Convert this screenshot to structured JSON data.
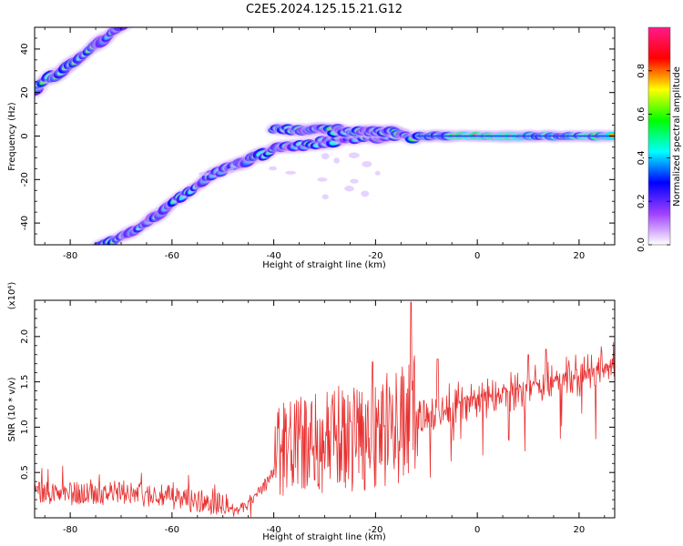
{
  "title": "C2E5.2024.125.15.21.G12",
  "chart_data": [
    {
      "type": "heatmap",
      "xlabel": "Height of straight line (km)",
      "ylabel": "Frequency (Hz)",
      "xlim": [
        -87,
        27
      ],
      "ylim": [
        -50,
        50
      ],
      "xticks": [
        -80,
        -60,
        -40,
        -20,
        0,
        20
      ],
      "yticks": [
        -40,
        -20,
        0,
        20,
        40
      ],
      "colorbar": {
        "label": "Normalized spectral amplitude",
        "range": [
          0,
          1
        ],
        "ticks": [
          "0.0",
          "0.2",
          "0.4",
          "0.6",
          "0.8"
        ],
        "colors": [
          "#ffffff",
          "#a040ff",
          "#0000ff",
          "#00ffff",
          "#00ff00",
          "#ffff00",
          "#ff0000",
          "#ff1a8c"
        ]
      },
      "traces": [
        {
          "x": [
            -87,
            -78,
            -70
          ],
          "y": [
            22,
            36,
            50
          ]
        },
        {
          "x": [
            -73,
            -62,
            -52,
            -46,
            -40,
            -30,
            -22,
            -15
          ],
          "y": [
            -50,
            -35,
            -17,
            -12,
            -6,
            -3,
            0,
            0
          ]
        },
        {
          "x": [
            -40,
            -30,
            -20,
            -12,
            0,
            10,
            27
          ],
          "y": [
            3,
            3,
            2,
            0,
            0,
            0,
            0
          ]
        }
      ]
    },
    {
      "type": "line",
      "xlabel": "Height of straight line (km)",
      "ylabel": "SNR (10 * v/v)",
      "yscale_label": "(x10⁴)",
      "xlim": [
        -87,
        27
      ],
      "ylim": [
        0,
        2.4
      ],
      "xticks": [
        -80,
        -60,
        -40,
        -20,
        0,
        20
      ],
      "yticks": [
        "0.5",
        "1.0",
        "1.5",
        "2.0"
      ],
      "line_color": "#e83030",
      "envelope": {
        "x": [
          -87,
          -80,
          -70,
          -60,
          -52,
          -46,
          -42,
          -38,
          -30,
          -20,
          -14,
          -10,
          0,
          10,
          20,
          27
        ],
        "y": [
          0.25,
          0.22,
          0.25,
          0.15,
          0.05,
          0.1,
          0.35,
          0.7,
          0.75,
          0.9,
          1.0,
          1.15,
          1.3,
          1.45,
          1.55,
          1.7
        ]
      },
      "peaks": [
        {
          "x": -13.0,
          "y": 2.38
        },
        {
          "x": -20.6,
          "y": 1.72
        },
        {
          "x": -7.8,
          "y": 1.75
        },
        {
          "x": 10.0,
          "y": 1.8
        },
        {
          "x": 13.5,
          "y": 1.86
        }
      ]
    }
  ]
}
